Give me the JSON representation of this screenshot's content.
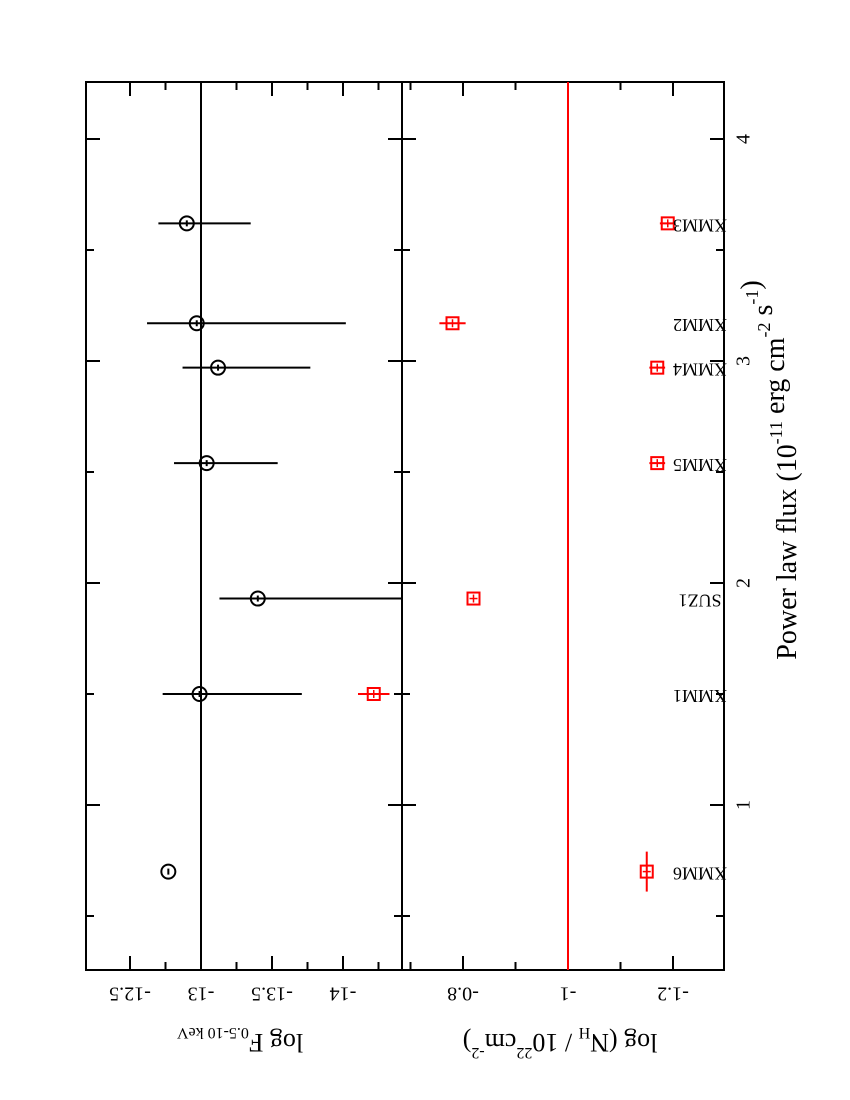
{
  "figure": {
    "xlabel_main": "Power law flux (10",
    "xlabel_exp": "-11",
    "xlabel_unit1": " erg cm",
    "xlabel_exp2": "-2",
    "xlabel_unit2": " s",
    "xlabel_exp3": "-1",
    "xlabel_close": ")",
    "top_ylabel_main": "log F",
    "top_ylabel_sub": "0.5-10 keV",
    "bottom_ylabel_main": "log (N",
    "bottom_ylabel_sub": "H",
    "bottom_ylabel_mid": " / 10",
    "bottom_ylabel_exp": "22",
    "bottom_ylabel_unit": "cm",
    "bottom_ylabel_exp2": "-2",
    "bottom_ylabel_close": ")"
  },
  "chart_data": [
    {
      "type": "scatter",
      "panel": "top",
      "xlabel": "Power law flux (10^-11 erg cm^-2 s^-1)",
      "ylabel": "log F 0.5-10 keV",
      "xlim": [
        0.4,
        4.3
      ],
      "ylim": [
        -14.6,
        -12.3
      ],
      "x_ticks": [
        1,
        2,
        3,
        4
      ],
      "y_ticks": [
        -14,
        -13.5,
        -13,
        -12.5
      ],
      "y_tick_labels": [
        "-14",
        "-13.5",
        "-13",
        "-12.5"
      ],
      "reference_line": -13.0,
      "marker": "circle",
      "color": "#000000",
      "points": [
        {
          "x": 0.7,
          "y": -12.77,
          "yerr_low": 0.0,
          "yerr_high": 0.0
        },
        {
          "x": 1.5,
          "y": -12.99,
          "yerr_low": 0.72,
          "yerr_high": 0.26
        },
        {
          "x": 1.93,
          "y": -13.4,
          "yerr_low": 1.2,
          "yerr_high": 0.27
        },
        {
          "x": 2.54,
          "y": -13.04,
          "yerr_low": 0.5,
          "yerr_high": 0.23
        },
        {
          "x": 2.97,
          "y": -13.12,
          "yerr_low": 0.65,
          "yerr_high": 0.25
        },
        {
          "x": 3.17,
          "y": -12.97,
          "yerr_low": 1.05,
          "yerr_high": 0.35
        },
        {
          "x": 3.62,
          "y": -12.9,
          "yerr_low": 0.45,
          "yerr_high": 0.2
        }
      ],
      "grid": false
    },
    {
      "type": "scatter",
      "panel": "bottom",
      "xlabel": "Power law flux (10^-11 erg cm^-2 s^-1)",
      "ylabel": "log (N_H / 10^22 cm^-2)",
      "xlim": [
        0.4,
        4.3
      ],
      "ylim": [
        -1.35,
        -0.6
      ],
      "x_ticks": [
        1,
        2,
        3,
        4
      ],
      "x_tick_labels": [
        "1",
        "2",
        "3",
        "4"
      ],
      "y_ticks": [
        -1.2,
        -1,
        -0.8
      ],
      "y_tick_labels": [
        "-1.2",
        "-1",
        "-0.8"
      ],
      "reference_line": -1.0,
      "reference_color": "#ff0000",
      "marker": "square",
      "color": "#ff0000",
      "points": [
        {
          "x": 0.7,
          "y": -1.15,
          "label": "XMM6",
          "xerr": 0.09,
          "yerr": 0.0
        },
        {
          "x": 1.5,
          "y": -0.63,
          "label": "XMM1",
          "xerr": 0.0,
          "yerr": 0.03
        },
        {
          "x": 1.93,
          "y": -0.82,
          "label": "SUZ1",
          "xerr": 0.0,
          "yerr": 0.0
        },
        {
          "x": 2.54,
          "y": -1.17,
          "label": "XMM5",
          "xerr": 0.0,
          "yerr": 0.015
        },
        {
          "x": 2.97,
          "y": -1.17,
          "label": "XMM4",
          "xerr": 0.0,
          "yerr": 0.015
        },
        {
          "x": 3.17,
          "y": -0.78,
          "label": "XMM2",
          "xerr": 0.0,
          "yerr": 0.025
        },
        {
          "x": 3.62,
          "y": -1.19,
          "label": "XMM3",
          "xerr": 0.0,
          "yerr": 0.015
        }
      ],
      "grid": false
    }
  ]
}
